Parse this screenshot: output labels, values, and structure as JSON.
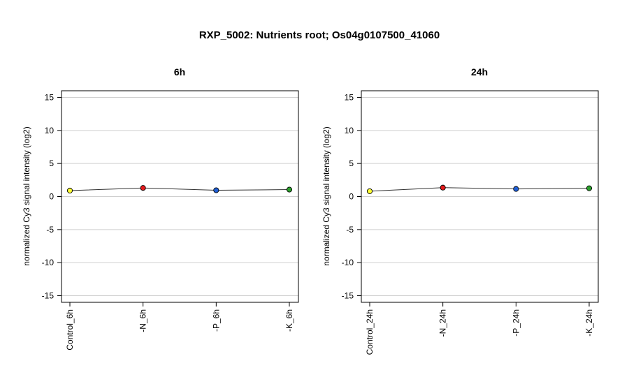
{
  "figure_title": "RXP_5002: Nutrients root; Os04g0107500_41060",
  "chart_data": [
    {
      "type": "line",
      "title": "6h",
      "xlabel": "",
      "ylabel": "normalized Cy3 signal intensity (log2)",
      "categories": [
        "Control_6h",
        "-N_6h",
        "-P_6h",
        "-K_6h"
      ],
      "values": [
        0.9,
        1.3,
        0.95,
        1.05
      ],
      "point_colors": [
        "#ffff33",
        "#e41a1c",
        "#1f5fd6",
        "#2ca02c"
      ],
      "ylim": [
        -16,
        16
      ],
      "yticks": [
        -15,
        -10,
        -5,
        0,
        5,
        10,
        15
      ],
      "grid": true
    },
    {
      "type": "line",
      "title": "24h",
      "xlabel": "",
      "ylabel": "normalized Cy3 signal intensity (log2)",
      "categories": [
        "Control_24h",
        "-N_24h",
        "-P_24h",
        "-K_24h"
      ],
      "values": [
        0.8,
        1.35,
        1.15,
        1.25
      ],
      "point_colors": [
        "#ffff33",
        "#e41a1c",
        "#1f5fd6",
        "#2ca02c"
      ],
      "ylim": [
        -16,
        16
      ],
      "yticks": [
        -15,
        -10,
        -5,
        0,
        5,
        10,
        15
      ],
      "grid": true
    }
  ]
}
